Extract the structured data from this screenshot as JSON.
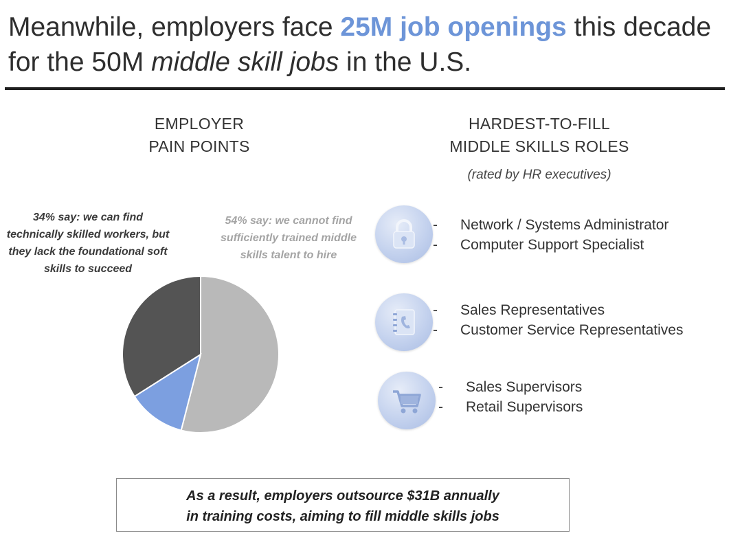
{
  "slide": {
    "title_parts": {
      "pre": "Meanwhile, employers face ",
      "highlight": "25M job openings",
      "mid": " this decade for the 50M ",
      "italic": "middle skill jobs",
      "post": " in the U.S."
    },
    "accent_color": "#6d95d8"
  },
  "pain_points": {
    "heading_line1": "EMPLOYER",
    "heading_line2": "PAIN POINTS",
    "callout_left": "34% say: we can find technically skilled workers, but they lack the foundational soft skills to succeed",
    "callout_right": "54% say: we cannot find sufficiently trained middle skills talent to hire"
  },
  "chart_data": {
    "type": "pie",
    "slices": [
      {
        "label": "54% say: we cannot find sufficiently trained middle skills talent to hire",
        "value": 54,
        "color": "#b9b9b9"
      },
      {
        "label": "",
        "value": 12,
        "color": "#7c9fe0"
      },
      {
        "label": "34% say: we can find technically skilled workers, but they lack the foundational soft skills to succeed",
        "value": 34,
        "color": "#545454"
      }
    ],
    "start_angle_deg": 0,
    "direction": "clockwise"
  },
  "roles": {
    "heading_line1": "HARDEST-TO-FILL",
    "heading_line2": "MIDDLE SKILLS ROLES",
    "subheading": "(rated by HR executives)",
    "groups": [
      {
        "icon": "lock-icon",
        "items": [
          "Network / Systems Administrator",
          "Computer Support Specialist"
        ]
      },
      {
        "icon": "address-book-icon",
        "items": [
          "Sales Representatives",
          "Customer Service Representatives"
        ]
      },
      {
        "icon": "shopping-cart-icon",
        "items": [
          "Sales Supervisors",
          "Retail Supervisors"
        ]
      }
    ]
  },
  "result": {
    "line1": "As a result, employers outsource $31B annually",
    "line2": "in training costs, aiming to fill middle skills jobs"
  }
}
